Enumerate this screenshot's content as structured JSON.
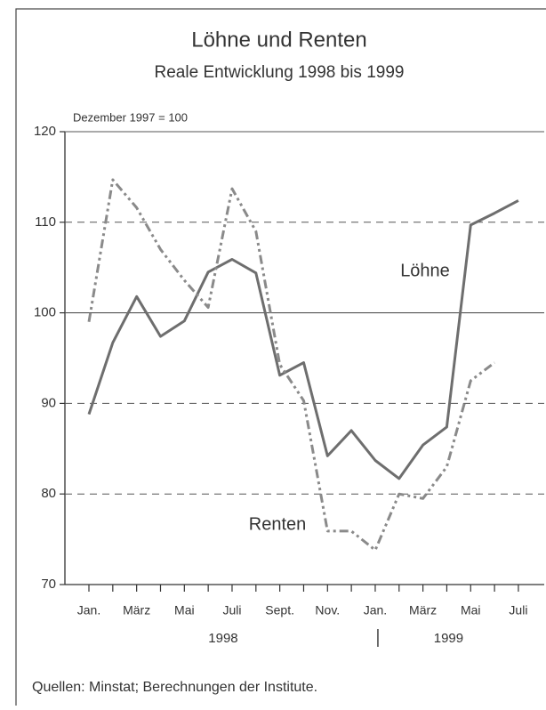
{
  "chart_data": {
    "type": "line",
    "title": "Löhne und Renten",
    "subtitle": "Reale Entwicklung 1998 bis 1999",
    "y_label": "Dezember 1997 = 100",
    "categories": [
      "Jan.",
      null,
      "März",
      null,
      "Mai",
      null,
      "Juli",
      null,
      "Sept.",
      null,
      "Nov.",
      null,
      "Jan.",
      null,
      "März",
      null,
      "Mai",
      null,
      "Juli"
    ],
    "years": [
      "1998",
      "1999"
    ],
    "series": [
      {
        "name": "Löhne",
        "color": "#6e6e6e",
        "dash": "solid",
        "values": [
          88.8,
          96.7,
          101.8,
          97.4,
          99.1,
          104.5,
          105.9,
          104.4,
          93.1,
          94.5,
          84.2,
          87.0,
          83.7,
          81.7,
          85.4,
          87.4,
          109.7,
          111.0,
          112.4
        ]
      },
      {
        "name": "Renten",
        "color": "#8a8a8a",
        "dash": "dash-dot-dot",
        "values": [
          99.0,
          114.7,
          111.6,
          107.0,
          103.6,
          100.6,
          113.7,
          109.0,
          94.3,
          90.3,
          75.9,
          75.9,
          73.8,
          80.0,
          79.5,
          83.0,
          92.5,
          94.5,
          null
        ]
      }
    ],
    "ylim": [
      70,
      120
    ],
    "yticks": [
      70,
      80,
      90,
      100,
      110,
      120
    ],
    "grid": true,
    "baseline": 100,
    "source": "Quellen: Minstat; Berechnungen der Institute."
  }
}
